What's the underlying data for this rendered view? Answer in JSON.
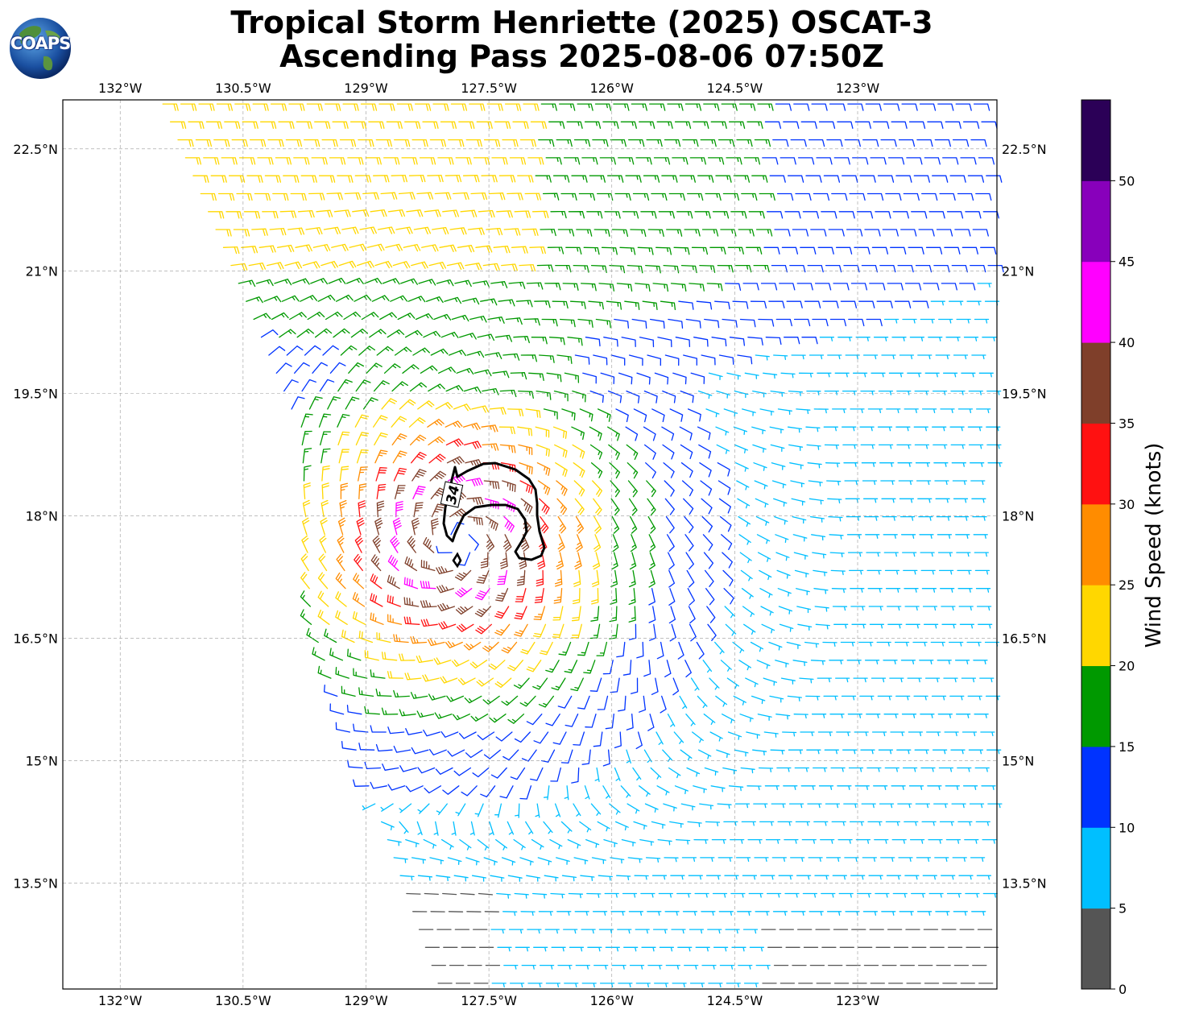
{
  "title": {
    "line1": "Tropical Storm Henriette (2025) OSCAT-3",
    "line2": "Ascending Pass 2025-08-06 07:50Z"
  },
  "logo": {
    "text": "COAPS",
    "icon": "globe-icon"
  },
  "map": {
    "lon_range": [
      -132.7,
      -121.3
    ],
    "lat_range": [
      12.2,
      23.1
    ],
    "lon_ticks": [
      {
        "value": -132.0,
        "label": "132°W"
      },
      {
        "value": -130.5,
        "label": "130.5°W"
      },
      {
        "value": -129.0,
        "label": "129°W"
      },
      {
        "value": -127.5,
        "label": "127.5°W"
      },
      {
        "value": -126.0,
        "label": "126°W"
      },
      {
        "value": -124.5,
        "label": "124.5°W"
      },
      {
        "value": -123.0,
        "label": "123°W"
      }
    ],
    "lat_ticks": [
      {
        "value": 22.5,
        "label": "22.5°N"
      },
      {
        "value": 21.0,
        "label": "21°N"
      },
      {
        "value": 19.5,
        "label": "19.5°N"
      },
      {
        "value": 18.0,
        "label": "18°N"
      },
      {
        "value": 16.5,
        "label": "16.5°N"
      },
      {
        "value": 15.0,
        "label": "15°N"
      },
      {
        "value": 13.5,
        "label": "13.5°N"
      }
    ],
    "gridlines": true,
    "storm_center": {
      "lon": -127.9,
      "lat": 17.7
    },
    "contour_label": "34"
  },
  "colorbar": {
    "label": "Wind Speed (knots)",
    "ticks": [
      "0",
      "5",
      "10",
      "15",
      "20",
      "25",
      "30",
      "35",
      "40",
      "45",
      "50"
    ],
    "bins": [
      {
        "min": 0,
        "max": 5,
        "color": "#555555"
      },
      {
        "min": 5,
        "max": 10,
        "color": "#00bfff"
      },
      {
        "min": 10,
        "max": 15,
        "color": "#0033ff"
      },
      {
        "min": 15,
        "max": 20,
        "color": "#009900"
      },
      {
        "min": 20,
        "max": 25,
        "color": "#ffd700"
      },
      {
        "min": 25,
        "max": 30,
        "color": "#ff8c00"
      },
      {
        "min": 30,
        "max": 35,
        "color": "#ff1111"
      },
      {
        "min": 35,
        "max": 40,
        "color": "#7f3f2a"
      },
      {
        "min": 40,
        "max": 45,
        "color": "#ff00ff"
      },
      {
        "min": 45,
        "max": 50,
        "color": "#8800bb"
      },
      {
        "min": 50,
        "max": 55,
        "color": "#2b0057"
      }
    ]
  }
}
